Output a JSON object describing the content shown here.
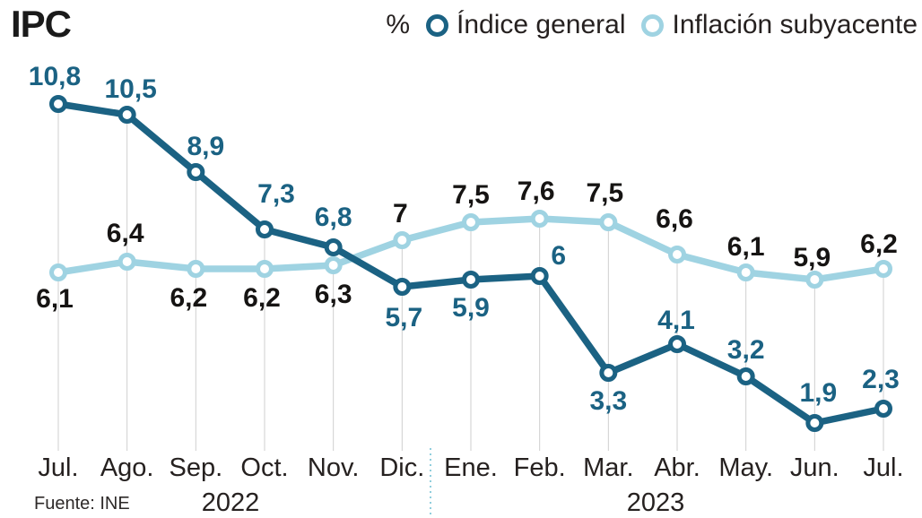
{
  "title": "IPC",
  "source": "Fuente: INE",
  "legend": {
    "unit": "%",
    "series": [
      {
        "label": "Índice general",
        "color": "#1b6283"
      },
      {
        "label": "Inflación subyacente",
        "color": "#9fd3e2"
      }
    ]
  },
  "colors": {
    "grid_line": "#cfcfcf",
    "separator": "#90cedd",
    "marker_fill": "#ffffff",
    "axis_text": "#262120"
  },
  "chart_data": {
    "type": "line",
    "title": "IPC",
    "unit": "%",
    "x": [
      "Jul.",
      "Ago.",
      "Sep.",
      "Oct.",
      "Nov.",
      "Dic.",
      "Ene.",
      "Feb.",
      "Mar.",
      "Abr.",
      "May.",
      "Jun.",
      "Jul."
    ],
    "x_groups": [
      {
        "label": "2022",
        "from": 0,
        "to": 5
      },
      {
        "label": "2023",
        "from": 6,
        "to": 12
      }
    ],
    "ylim": [
      1.1,
      10.8
    ],
    "grid": "vertical-only",
    "legend_position": "top-right",
    "series": [
      {
        "name": "Índice general",
        "color": "#1b6283",
        "label_color": "#1b6283",
        "values": [
          10.8,
          10.5,
          8.9,
          7.3,
          6.8,
          5.7,
          5.9,
          6,
          3.3,
          4.1,
          3.2,
          1.9,
          2.3
        ],
        "labels": [
          "10,8",
          "10,5",
          "8,9",
          "7,3",
          "6,8",
          "5,7",
          "5,9",
          "6",
          "3,3",
          "4,1",
          "3,2",
          "1,9",
          "2,3"
        ],
        "label_offsets": [
          {
            "dx": -4,
            "dy": -21
          },
          {
            "dx": 4,
            "dy": -19
          },
          {
            "dx": 11,
            "dy": -19
          },
          {
            "dx": 13,
            "dy": -30
          },
          {
            "dx": 0,
            "dy": -24
          },
          {
            "dx": 2,
            "dy": 44
          },
          {
            "dx": 0,
            "dy": 41
          },
          {
            "dx": 21,
            "dy": -13
          },
          {
            "dx": 0,
            "dy": 41
          },
          {
            "dx": -1,
            "dy": -17
          },
          {
            "dx": 0,
            "dy": -20
          },
          {
            "dx": 4,
            "dy": -24
          },
          {
            "dx": -3,
            "dy": -23
          }
        ]
      },
      {
        "name": "Inflación subyacente",
        "color": "#9fd3e2",
        "label_color": "#161413",
        "values": [
          6.1,
          6.4,
          6.2,
          6.2,
          6.3,
          7,
          7.5,
          7.6,
          7.5,
          6.6,
          6.1,
          5.9,
          6.2
        ],
        "labels": [
          "6,1",
          "6,4",
          "6,2",
          "6,2",
          "6,3",
          "7",
          "7,5",
          "7,6",
          "7,5",
          "6,6",
          "6,1",
          "5,9",
          "6,2"
        ],
        "label_offsets": [
          {
            "dx": -4,
            "dy": 39
          },
          {
            "dx": -2,
            "dy": -22
          },
          {
            "dx": -8,
            "dy": 42
          },
          {
            "dx": -3,
            "dy": 42
          },
          {
            "dx": 0,
            "dy": 42
          },
          {
            "dx": -2,
            "dy": -20
          },
          {
            "dx": 0,
            "dy": -21
          },
          {
            "dx": -4,
            "dy": -21
          },
          {
            "dx": -4,
            "dy": -23
          },
          {
            "dx": -3,
            "dy": -30
          },
          {
            "dx": 0,
            "dy": -19
          },
          {
            "dx": -3,
            "dy": -15
          },
          {
            "dx": -5,
            "dy": -18
          }
        ]
      }
    ]
  }
}
